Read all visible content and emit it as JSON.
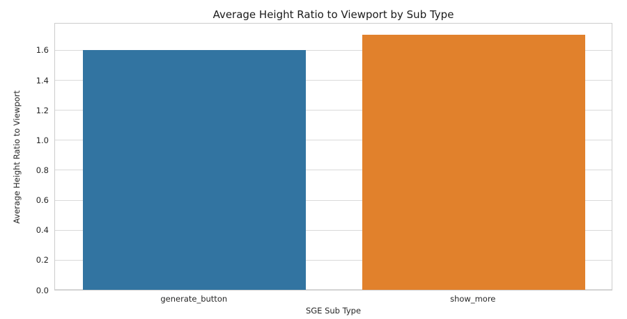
{
  "figure": {
    "title": "Average Height Ratio to Viewport by Sub Type"
  },
  "chart_data": {
    "type": "bar",
    "title": "Average Height Ratio to Viewport by Sub Type",
    "xlabel": "SGE Sub Type",
    "ylabel": "Average Height Ratio to Viewport",
    "categories": [
      "generate_button",
      "show_more"
    ],
    "values": [
      1.6,
      1.7
    ],
    "bar_colors": [
      "#3274a1",
      "#e1812c"
    ],
    "ylim": [
      0,
      1.785
    ],
    "yticks": [
      0.0,
      0.2,
      0.4,
      0.6,
      0.8,
      1.0,
      1.2,
      1.4,
      1.6
    ],
    "ytick_labels": [
      "0.0",
      "0.2",
      "0.4",
      "0.6",
      "0.8",
      "1.0",
      "1.2",
      "1.4",
      "1.6"
    ],
    "grid": "horizontal",
    "legend": "none",
    "background_color": "#ffffff",
    "grid_color": "#d9d9d9",
    "spine_color": "#cccccc",
    "text_color": "#262626"
  }
}
